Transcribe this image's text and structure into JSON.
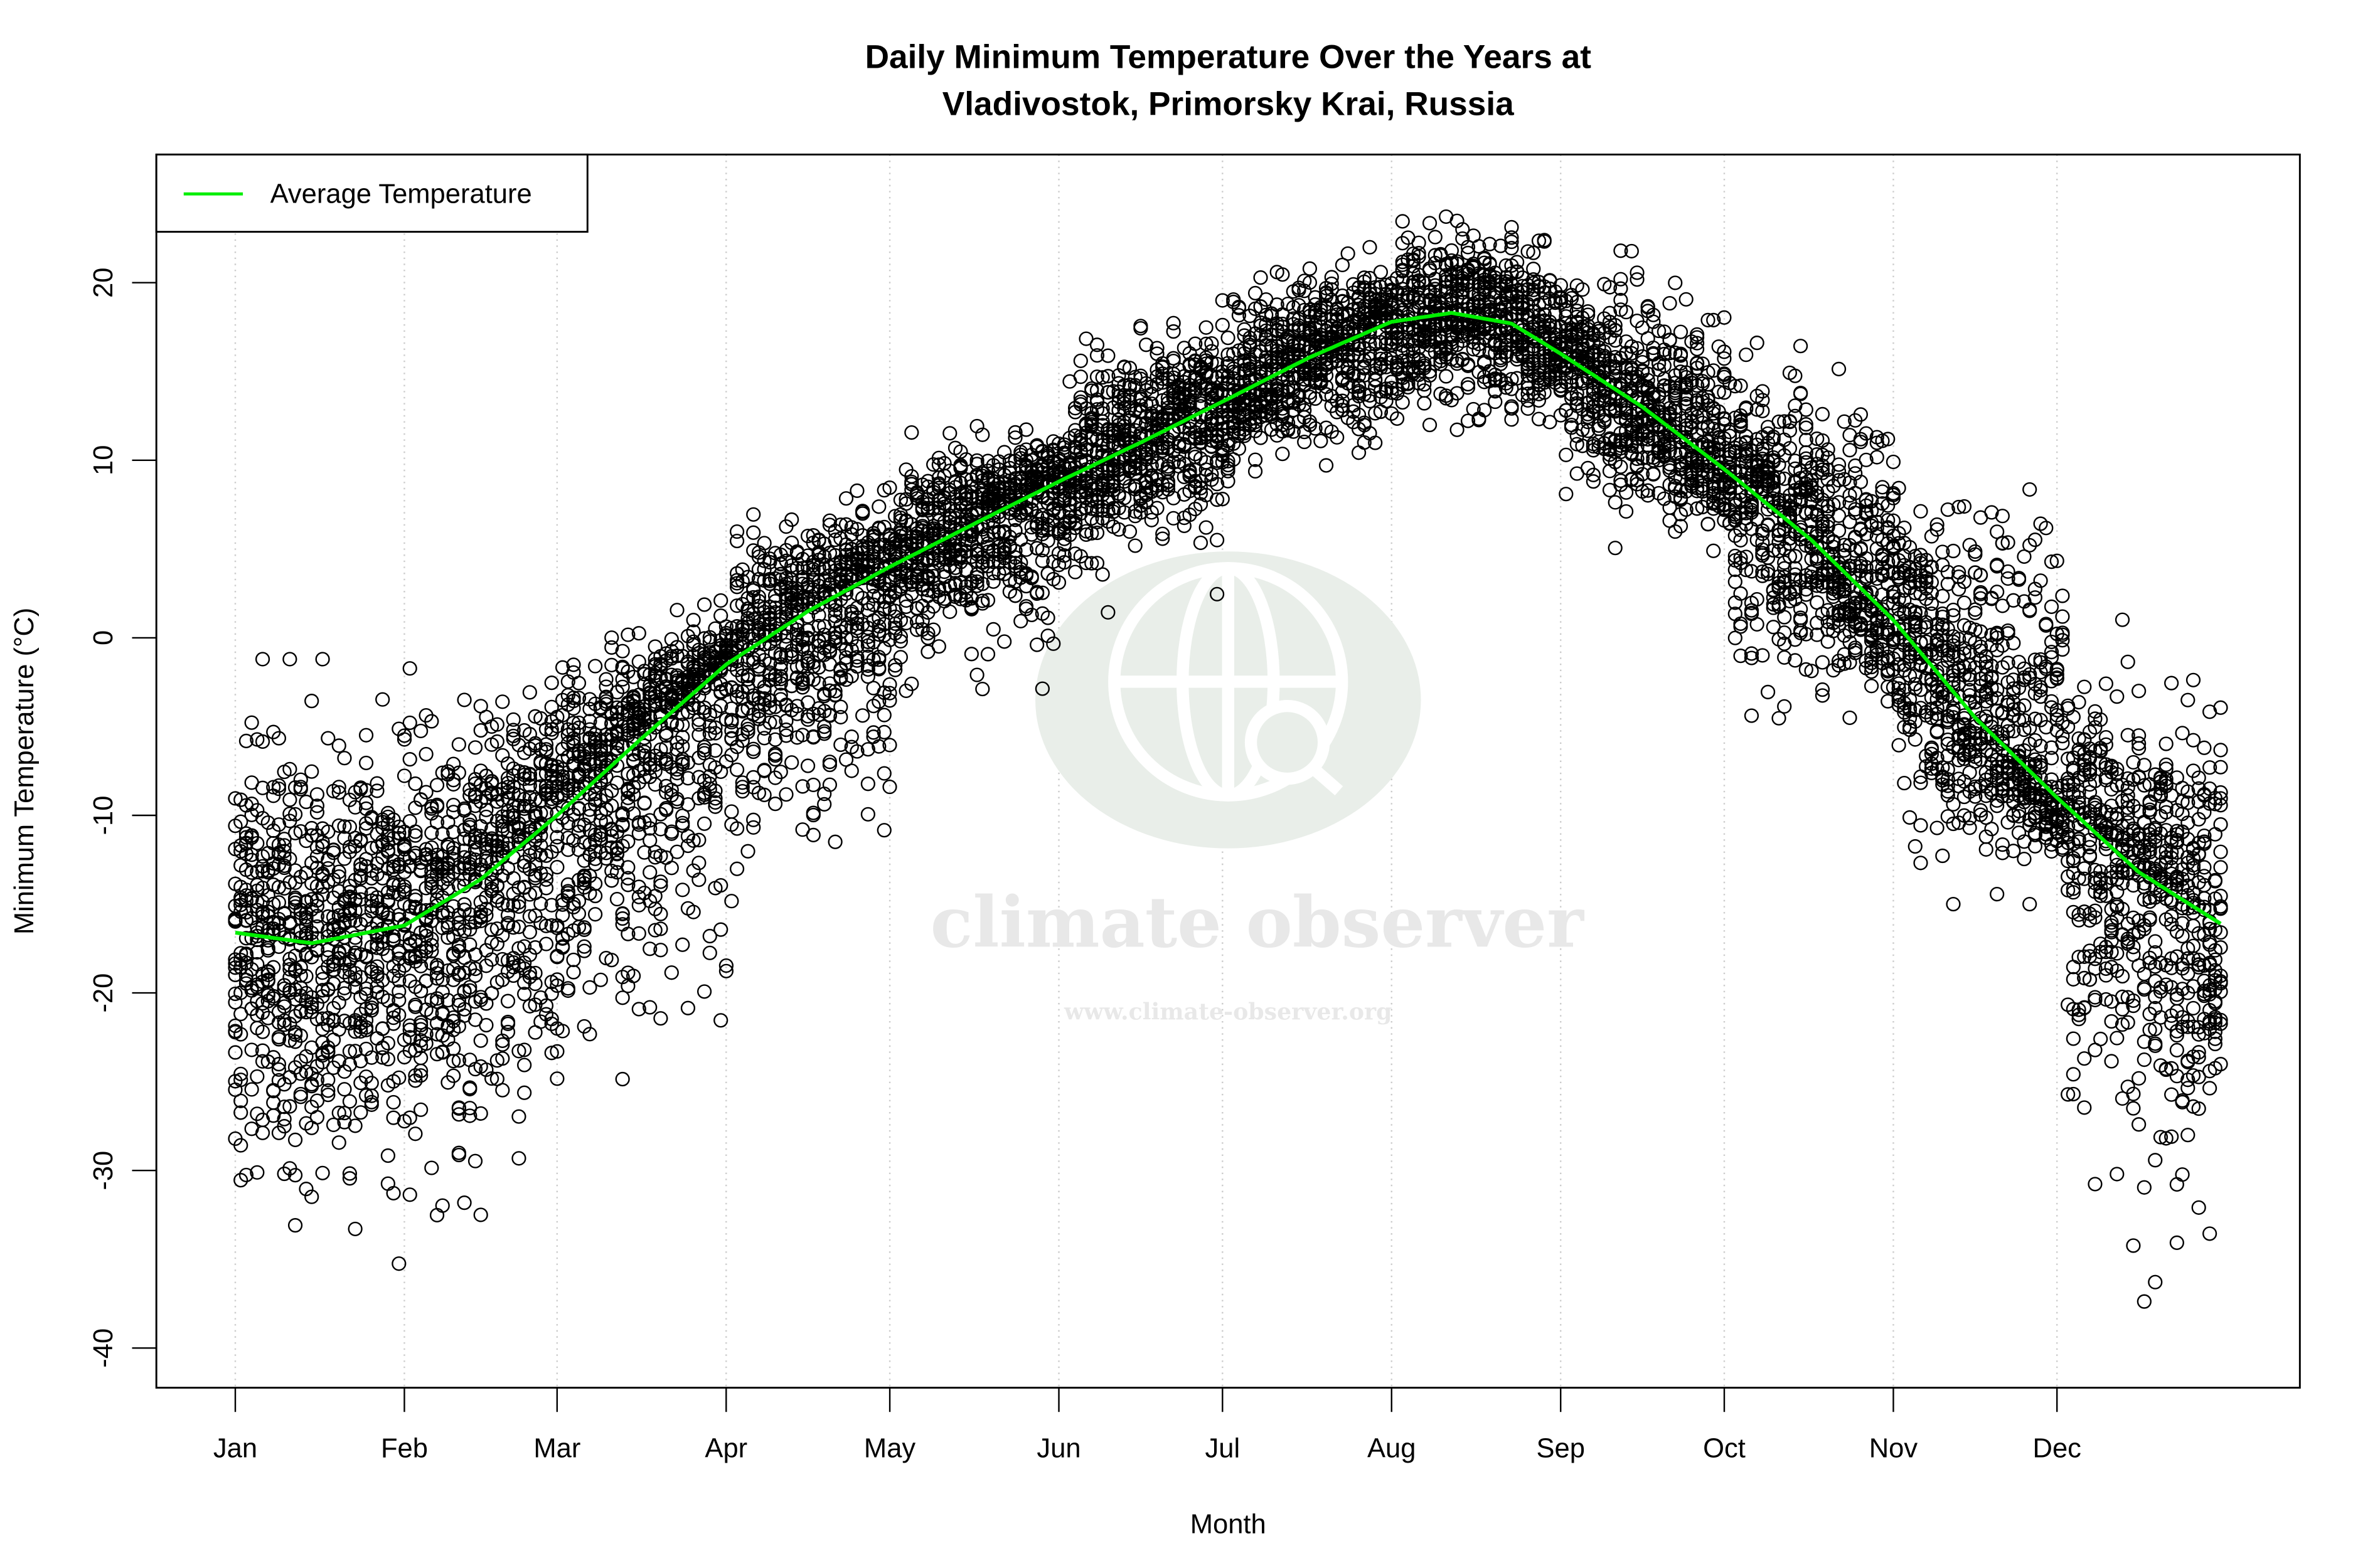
{
  "chart_data": {
    "type": "scatter",
    "title_line1": "Daily Minimum Temperature Over the Years at",
    "title_line2": "Vladivostok, Primorsky Krai, Russia",
    "xlabel": "Month",
    "ylabel": "Minimum Temperature (°C)",
    "ylim": [
      -42,
      27
    ],
    "xlim_day_of_year": [
      1,
      365
    ],
    "y_ticks": [
      -40,
      -30,
      -20,
      -10,
      0,
      10,
      20
    ],
    "x_ticks": [
      {
        "label": "Jan",
        "day": 1
      },
      {
        "label": "Feb",
        "day": 32
      },
      {
        "label": "Mar",
        "day": 60
      },
      {
        "label": "Apr",
        "day": 91
      },
      {
        "label": "May",
        "day": 121
      },
      {
        "label": "Jun",
        "day": 152
      },
      {
        "label": "Jul",
        "day": 182
      },
      {
        "label": "Aug",
        "day": 213
      },
      {
        "label": "Sep",
        "day": 244
      },
      {
        "label": "Oct",
        "day": 274
      },
      {
        "label": "Nov",
        "day": 305
      },
      {
        "label": "Dec",
        "day": 335
      }
    ],
    "grid": "vertical dotted at month ticks",
    "legend": {
      "placement": "top-left",
      "entries": [
        {
          "label": "Average Temperature",
          "color": "#00ee00"
        }
      ]
    },
    "average_curve": {
      "day": [
        1,
        15,
        32,
        46,
        60,
        75,
        91,
        106,
        121,
        137,
        152,
        167,
        182,
        198,
        213,
        224,
        235,
        244,
        259,
        274,
        290,
        305,
        320,
        335,
        350,
        365
      ],
      "value": [
        -16.6,
        -17.2,
        -16.2,
        -13.6,
        -10.0,
        -5.8,
        -1.5,
        1.5,
        4.0,
        6.5,
        8.8,
        11.0,
        13.3,
        15.8,
        17.8,
        18.3,
        17.7,
        16.0,
        13.0,
        9.5,
        5.5,
        1.0,
        -4.5,
        -9.0,
        -13.2,
        -16.1
      ]
    },
    "daily_points_spread": {
      "month": [
        "Jan",
        "Feb",
        "Mar",
        "Apr",
        "May",
        "Jun",
        "Jul",
        "Aug",
        "Sep",
        "Oct",
        "Nov",
        "Dec"
      ],
      "typical_min": [
        -39.5,
        -39,
        -29,
        -15.7,
        -4.8,
        0.9,
        8,
        10,
        3.7,
        -6.8,
        -15,
        -38.2
      ],
      "typical_max": [
        -1.2,
        -0.3,
        2.4,
        9.1,
        12.8,
        19,
        22,
        24.7,
        21.8,
        17.8,
        11.2,
        1.2
      ]
    },
    "point_marker": "open circle",
    "point_color": "#000000",
    "line_color": "#00ee00"
  },
  "watermark": {
    "name": "climate observer",
    "url": "www.climate-observer.org",
    "color": "#e6ebe6"
  }
}
